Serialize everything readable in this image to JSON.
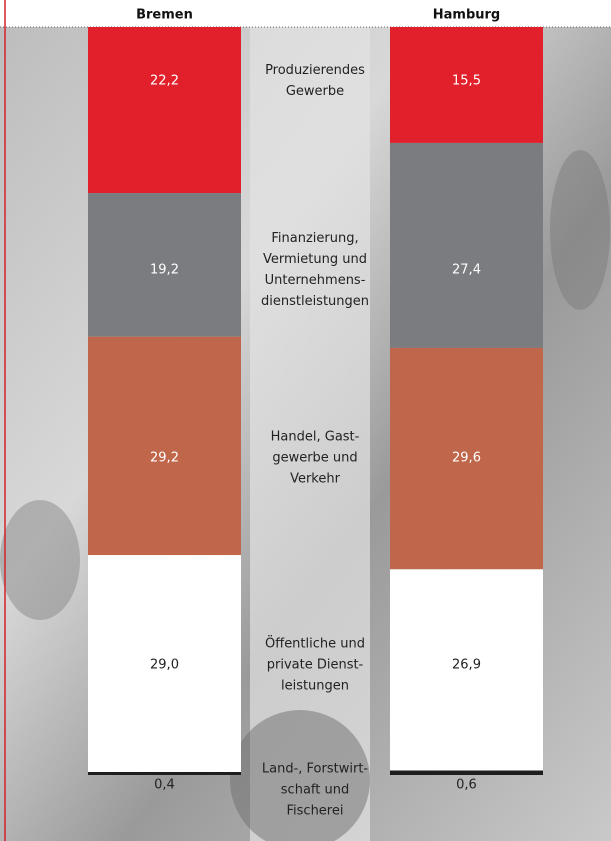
{
  "chart_data": {
    "type": "stacked-bar",
    "categories": [
      [
        "Produzierendes",
        "Gewerbe"
      ],
      [
        "Finanzierung,",
        "Vermietung und",
        "Unternehmens-",
        "dienstleistungen"
      ],
      [
        "Handel, Gast-",
        "gewerbe und",
        "Verkehr"
      ],
      [
        "Öffentliche und",
        "private Dienst-",
        "leistungen"
      ],
      [
        "Land-, Forstwirt-",
        "schaft und",
        "Fischerei"
      ]
    ],
    "colors": [
      "#e2202c",
      "#7b7c80",
      "#c0664b",
      "#ffffff",
      "#1e1e1e"
    ],
    "series": [
      {
        "name": "Bremen",
        "values": [
          22.2,
          19.2,
          29.2,
          29.0,
          0.4
        ],
        "value_labels": [
          "22,2",
          "19,2",
          "29,2",
          "29,0",
          "0,4"
        ]
      },
      {
        "name": "Hamburg",
        "values": [
          15.5,
          27.4,
          29.6,
          26.9,
          0.6
        ],
        "value_labels": [
          "15,5",
          "27,4",
          "29,6",
          "26,9",
          "0,6"
        ]
      }
    ]
  }
}
